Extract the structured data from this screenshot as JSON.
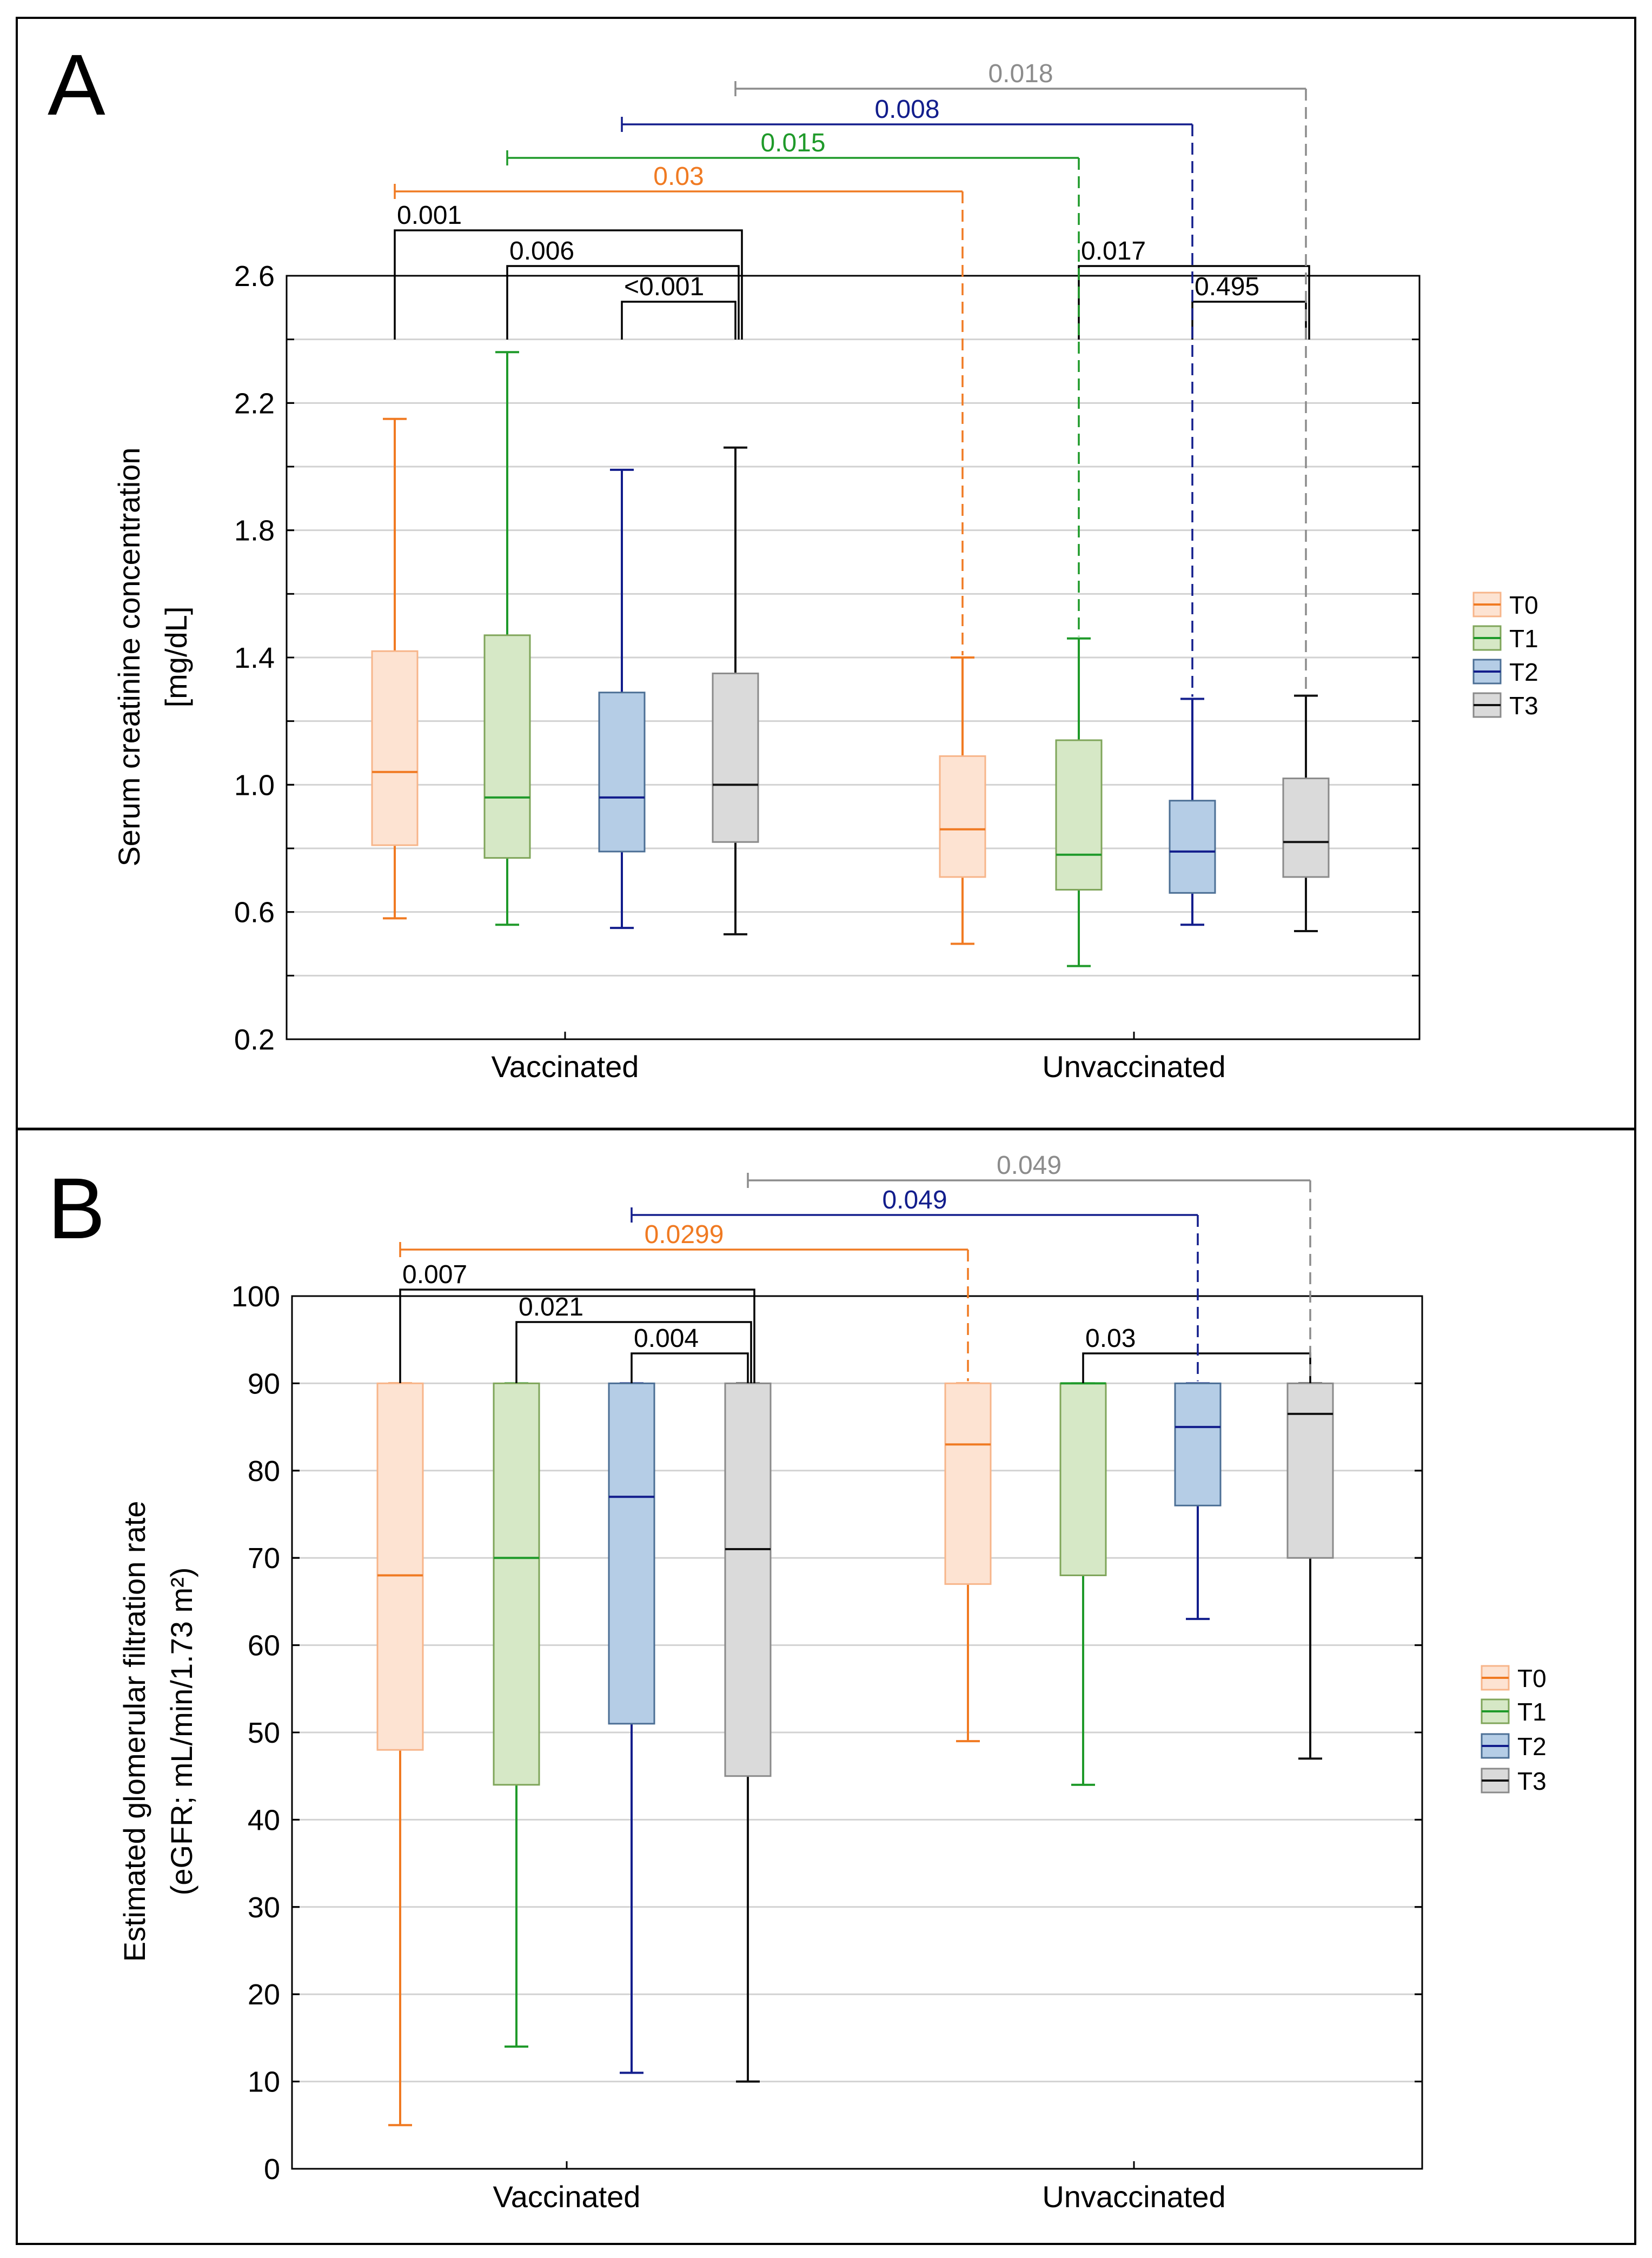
{
  "colors": {
    "T0": {
      "line": "#f07a22",
      "fill": "#fde3d2",
      "stroke": "#f7b58a"
    },
    "T1": {
      "line": "#1f9a2a",
      "fill": "#d6e8c6",
      "stroke": "#7fa55a"
    },
    "T2": {
      "line": "#121d8c",
      "fill": "#b5cde6",
      "stroke": "#4c6f95"
    },
    "T3": {
      "line": "#111111",
      "fill": "#dadada",
      "stroke": "#8a8a8a"
    },
    "grey_annot": "#8c8c8c",
    "grid": "#d2d2d2"
  },
  "chart_data": [
    {
      "panel": "A",
      "type": "boxplot",
      "ylabel_line1": "Serum creatinine concentration",
      "ylabel_line2": "[mg/dL]",
      "ylim": [
        0.2,
        2.6
      ],
      "yticks": [
        0.2,
        0.6,
        1.0,
        1.4,
        1.8,
        2.2,
        2.6
      ],
      "ytick_labels": [
        "0.2",
        "0.6",
        "1.0",
        "1.4",
        "1.8",
        "2.2",
        "2.6"
      ],
      "grid_values": [
        0.4,
        0.6,
        0.8,
        1.0,
        1.2,
        1.4,
        1.6,
        1.8,
        2.0,
        2.2,
        2.4
      ],
      "categories": [
        "Vaccinated",
        "Unvaccinated"
      ],
      "legend": [
        "T0",
        "T1",
        "T2",
        "T3"
      ],
      "groups": [
        {
          "name": "Vaccinated",
          "boxes": [
            {
              "series": "T0",
              "min": 0.58,
              "q1": 0.81,
              "median": 1.04,
              "q3": 1.42,
              "max": 2.15
            },
            {
              "series": "T1",
              "min": 0.56,
              "q1": 0.77,
              "median": 0.96,
              "q3": 1.47,
              "max": 2.36
            },
            {
              "series": "T2",
              "min": 0.55,
              "q1": 0.79,
              "median": 0.96,
              "q3": 1.29,
              "max": 1.99
            },
            {
              "series": "T3",
              "min": 0.53,
              "q1": 0.82,
              "median": 1.0,
              "q3": 1.35,
              "max": 2.06
            }
          ]
        },
        {
          "name": "Unvaccinated",
          "boxes": [
            {
              "series": "T0",
              "min": 0.5,
              "q1": 0.71,
              "median": 0.86,
              "q3": 1.09,
              "max": 1.4
            },
            {
              "series": "T1",
              "min": 0.43,
              "q1": 0.67,
              "median": 0.78,
              "q3": 1.14,
              "max": 1.46
            },
            {
              "series": "T2",
              "min": 0.56,
              "q1": 0.66,
              "median": 0.79,
              "q3": 0.95,
              "max": 1.27
            },
            {
              "series": "T3",
              "min": 0.54,
              "q1": 0.71,
              "median": 0.82,
              "q3": 1.02,
              "max": 1.28
            }
          ]
        }
      ],
      "within_brackets": [
        {
          "group": 0,
          "from": 0,
          "to": 3,
          "label": "0.001",
          "level": 2
        },
        {
          "group": 0,
          "from": 1,
          "to": 3,
          "label": "0.006",
          "level": 1
        },
        {
          "group": 0,
          "from": 2,
          "to": 3,
          "label": "<0.001",
          "level": 0
        },
        {
          "group": 1,
          "from": 1,
          "to": 3,
          "label": "0.017",
          "level": 1
        },
        {
          "group": 1,
          "from": 2,
          "to": 3,
          "label": "0.495",
          "level": 0
        }
      ],
      "between_brackets": [
        {
          "series": "T0",
          "label": "0.03",
          "colorKey": "T0",
          "level": 0
        },
        {
          "series": "T1",
          "label": "0.015",
          "colorKey": "T1",
          "level": 1
        },
        {
          "series": "T2",
          "label": "0.008",
          "colorKey": "T2",
          "level": 2
        },
        {
          "series": "T3",
          "label": "0.018",
          "colorKey": "grey",
          "level": 3
        }
      ]
    },
    {
      "panel": "B",
      "type": "boxplot",
      "ylabel_line1": "Estimated glomerular filtration rate",
      "ylabel_line2": "(eGFR; mL/min/1.73 m²)",
      "ylim": [
        0,
        100
      ],
      "yticks": [
        0,
        10,
        20,
        30,
        40,
        50,
        60,
        70,
        80,
        90,
        100
      ],
      "ytick_labels": [
        "0",
        "10",
        "20",
        "30",
        "40",
        "50",
        "60",
        "70",
        "80",
        "90",
        "100"
      ],
      "grid_values": [
        10,
        20,
        30,
        40,
        50,
        60,
        70,
        80,
        90
      ],
      "categories": [
        "Vaccinated",
        "Unvaccinated"
      ],
      "legend": [
        "T0",
        "T1",
        "T2",
        "T3"
      ],
      "groups": [
        {
          "name": "Vaccinated",
          "boxes": [
            {
              "series": "T0",
              "min": 5,
              "q1": 48,
              "median": 68,
              "q3": 90,
              "max": 90
            },
            {
              "series": "T1",
              "min": 14,
              "q1": 44,
              "median": 70,
              "q3": 90,
              "max": 90
            },
            {
              "series": "T2",
              "min": 11,
              "q1": 51,
              "median": 77,
              "q3": 90,
              "max": 90
            },
            {
              "series": "T3",
              "min": 10,
              "q1": 45,
              "median": 71,
              "q3": 90,
              "max": 90
            }
          ]
        },
        {
          "name": "Unvaccinated",
          "boxes": [
            {
              "series": "T0",
              "min": 49,
              "q1": 67,
              "median": 83,
              "q3": 90,
              "max": 90
            },
            {
              "series": "T1",
              "min": 44,
              "q1": 68,
              "median": 90,
              "q3": 90,
              "max": 90
            },
            {
              "series": "T2",
              "min": 63,
              "q1": 76,
              "median": 85,
              "q3": 90,
              "max": 90
            },
            {
              "series": "T3",
              "min": 47,
              "q1": 70,
              "median": 86.5,
              "q3": 90,
              "max": 90
            }
          ]
        }
      ],
      "within_brackets": [
        {
          "group": 0,
          "from": 0,
          "to": 3,
          "label": "0.007",
          "level": 2
        },
        {
          "group": 0,
          "from": 1,
          "to": 3,
          "label": "0.021",
          "level": 1
        },
        {
          "group": 0,
          "from": 2,
          "to": 3,
          "label": "0.004",
          "level": 0
        },
        {
          "group": 1,
          "from": 1,
          "to": 3,
          "label": "0.03",
          "level": 0
        }
      ],
      "between_brackets": [
        {
          "series": "T0",
          "label": "0.0299",
          "colorKey": "T0",
          "level": 0
        },
        {
          "series": "T2",
          "label": "0.049",
          "colorKey": "T2",
          "level": 1
        },
        {
          "series": "T3",
          "label": "0.049",
          "colorKey": "grey",
          "level": 2
        }
      ]
    }
  ],
  "panels": [
    {
      "letter": "A"
    },
    {
      "letter": "B"
    }
  ]
}
